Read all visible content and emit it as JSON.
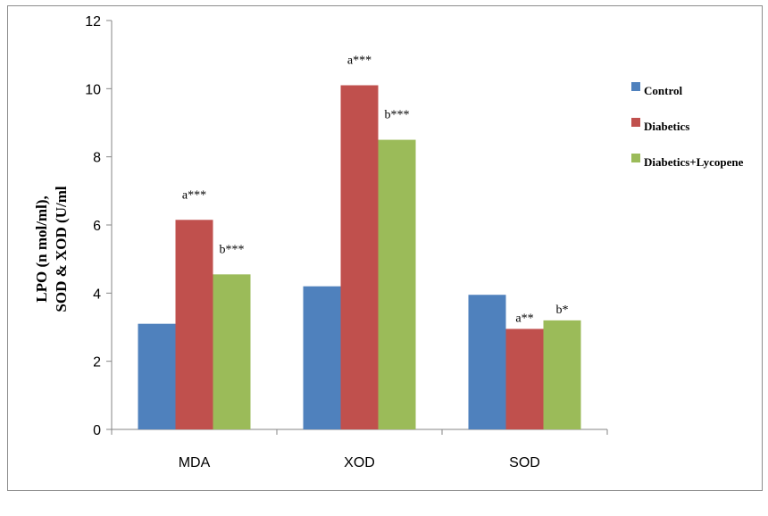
{
  "chart_data": {
    "type": "bar",
    "title": "",
    "xlabel": "",
    "ylabel_lines": [
      "LPO (n mol/ml),",
      "SOD & XOD (U/ml"
    ],
    "categories": [
      "MDA",
      "XOD",
      "SOD"
    ],
    "ylim": [
      0,
      12
    ],
    "yticks": [
      0,
      2,
      4,
      6,
      8,
      10,
      12
    ],
    "grid": false,
    "legend_position": "right",
    "series": [
      {
        "name": "Control",
        "color": "#4f81bd",
        "values": [
          3.1,
          4.2,
          3.95
        ],
        "annotations": [
          "",
          "",
          ""
        ]
      },
      {
        "name": "Diabetics",
        "color": "#c0504d",
        "values": [
          6.15,
          10.1,
          2.95
        ],
        "annotations": [
          "a***",
          "a***",
          "a**"
        ]
      },
      {
        "name": "Diabetics+Lycopene",
        "color": "#9bbb59",
        "values": [
          4.55,
          8.5,
          3.2
        ],
        "annotations": [
          "b***",
          "b***",
          "b*"
        ]
      }
    ]
  }
}
